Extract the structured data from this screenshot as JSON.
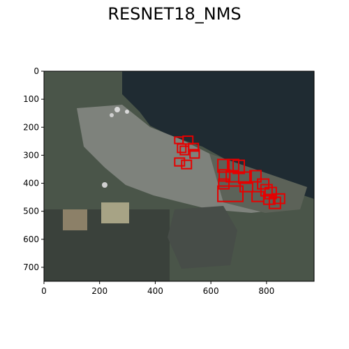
{
  "chart_data": {
    "type": "image-with-boxes",
    "title": "RESNET18_NMS",
    "xlabel": "",
    "ylabel": "",
    "xlim": [
      0,
      971
    ],
    "ylim": [
      750,
      0
    ],
    "xticks": [
      0,
      200,
      400,
      600,
      800
    ],
    "yticks": [
      0,
      100,
      200,
      300,
      400,
      500,
      600,
      700
    ],
    "box_color": "#e60000",
    "image_description_colors": {
      "water": "#1d2a31",
      "land": "#4e5a4d",
      "industrial": "#8a8d88"
    },
    "boxes": [
      {
        "x0": 470,
        "y0": 235,
        "x1": 500,
        "y1": 258
      },
      {
        "x0": 500,
        "y0": 232,
        "x1": 535,
        "y1": 260
      },
      {
        "x0": 480,
        "y0": 260,
        "x1": 510,
        "y1": 290
      },
      {
        "x0": 490,
        "y0": 268,
        "x1": 520,
        "y1": 298
      },
      {
        "x0": 520,
        "y0": 258,
        "x1": 555,
        "y1": 285
      },
      {
        "x0": 525,
        "y0": 280,
        "x1": 558,
        "y1": 310
      },
      {
        "x0": 470,
        "y0": 310,
        "x1": 505,
        "y1": 338
      },
      {
        "x0": 495,
        "y0": 318,
        "x1": 530,
        "y1": 348
      },
      {
        "x0": 625,
        "y0": 315,
        "x1": 665,
        "y1": 360
      },
      {
        "x0": 660,
        "y0": 315,
        "x1": 700,
        "y1": 360
      },
      {
        "x0": 680,
        "y0": 318,
        "x1": 720,
        "y1": 365
      },
      {
        "x0": 630,
        "y0": 352,
        "x1": 668,
        "y1": 392
      },
      {
        "x0": 655,
        "y0": 355,
        "x1": 700,
        "y1": 395
      },
      {
        "x0": 628,
        "y0": 385,
        "x1": 665,
        "y1": 420
      },
      {
        "x0": 625,
        "y0": 410,
        "x1": 715,
        "y1": 465
      },
      {
        "x0": 700,
        "y0": 360,
        "x1": 745,
        "y1": 400
      },
      {
        "x0": 705,
        "y0": 395,
        "x1": 750,
        "y1": 430
      },
      {
        "x0": 740,
        "y0": 355,
        "x1": 780,
        "y1": 395
      },
      {
        "x0": 768,
        "y0": 385,
        "x1": 808,
        "y1": 420
      },
      {
        "x0": 780,
        "y0": 405,
        "x1": 820,
        "y1": 445
      },
      {
        "x0": 795,
        "y0": 415,
        "x1": 835,
        "y1": 455
      },
      {
        "x0": 748,
        "y0": 430,
        "x1": 790,
        "y1": 465
      },
      {
        "x0": 790,
        "y0": 440,
        "x1": 830,
        "y1": 475
      },
      {
        "x0": 810,
        "y0": 450,
        "x1": 850,
        "y1": 490
      },
      {
        "x0": 825,
        "y0": 438,
        "x1": 865,
        "y1": 472
      }
    ]
  }
}
